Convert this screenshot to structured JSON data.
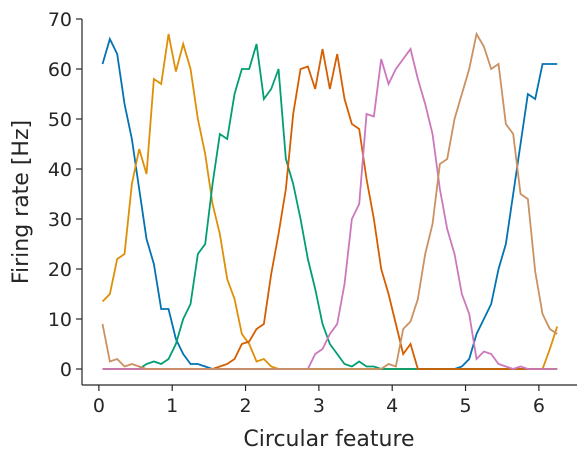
{
  "chart_data": {
    "type": "line",
    "xlabel": "Circular feature",
    "ylabel": "Firing rate [Hz]",
    "x": [
      0.05,
      0.15,
      0.25,
      0.35,
      0.45,
      0.55,
      0.65,
      0.75,
      0.85,
      0.95,
      1.05,
      1.15,
      1.25,
      1.35,
      1.45,
      1.55,
      1.65,
      1.75,
      1.85,
      1.95,
      2.05,
      2.15,
      2.25,
      2.35,
      2.45,
      2.55,
      2.65,
      2.75,
      2.85,
      2.95,
      3.05,
      3.15,
      3.25,
      3.35,
      3.45,
      3.55,
      3.65,
      3.75,
      3.85,
      3.95,
      4.05,
      4.15,
      4.25,
      4.35,
      4.45,
      4.55,
      4.65,
      4.75,
      4.85,
      4.95,
      5.05,
      5.15,
      5.25,
      5.35,
      5.45,
      5.55,
      5.65,
      5.75,
      5.85,
      5.95,
      6.05,
      6.15,
      6.25
    ],
    "series": [
      {
        "color": "#0173b2",
        "values": [
          61,
          66,
          63,
          53,
          46,
          36,
          26,
          21,
          12,
          12,
          6,
          3,
          1,
          1,
          0.5,
          0,
          0,
          0,
          0,
          0,
          0,
          0,
          0,
          0,
          0,
          0,
          0,
          0,
          0,
          0,
          0,
          0,
          0,
          0,
          0,
          0,
          0,
          0,
          0,
          0,
          0,
          0,
          0,
          0,
          0,
          0,
          0,
          0,
          0,
          0.5,
          2,
          7,
          10,
          13,
          20,
          25,
          35,
          45,
          55,
          54,
          61,
          61,
          61
        ]
      },
      {
        "color": "#de8f05",
        "values": [
          13.5,
          15,
          22,
          23,
          37,
          44,
          39,
          58,
          57,
          67,
          59.5,
          65,
          60,
          50,
          43,
          33,
          27,
          18,
          14,
          7,
          5,
          1.5,
          2,
          0.5,
          0,
          0,
          0,
          0,
          0,
          0,
          0,
          0,
          0,
          0,
          0,
          0,
          0,
          0,
          0,
          0,
          0,
          0,
          0,
          0,
          0,
          0,
          0,
          0,
          0,
          0,
          0,
          0,
          0,
          0,
          0,
          0,
          0,
          0,
          0,
          0,
          0,
          4,
          8.5
        ]
      },
      {
        "color": "#029e73",
        "values": [
          0,
          0,
          0,
          0,
          0,
          0,
          1,
          1.5,
          1,
          2,
          5,
          10,
          13,
          23,
          25,
          37,
          47,
          46,
          55,
          60,
          60,
          65,
          54,
          56,
          60,
          42,
          37,
          30,
          22,
          16,
          9,
          5,
          3,
          1,
          0.5,
          1.5,
          0.5,
          0.5,
          0,
          0,
          0,
          0,
          0,
          0,
          0,
          0,
          0,
          0,
          0,
          0,
          0,
          0,
          0,
          0,
          0,
          0,
          0,
          0,
          0,
          0,
          0,
          0,
          0
        ]
      },
      {
        "color": "#d55e00",
        "values": [
          0,
          0,
          0,
          0,
          0,
          0,
          0,
          0,
          0,
          0,
          0,
          0,
          0,
          0,
          0,
          0,
          0.5,
          1,
          2,
          5,
          5.5,
          8,
          9,
          19,
          27,
          36,
          51,
          60,
          60.5,
          56,
          64,
          56,
          63,
          54,
          49,
          48,
          38,
          30,
          20,
          15,
          9,
          3,
          5,
          0,
          0,
          0,
          0,
          0,
          0,
          0,
          0,
          0,
          0,
          0,
          0,
          0,
          0,
          0,
          0,
          0,
          0,
          0,
          0
        ]
      },
      {
        "color": "#cc78bc",
        "values": [
          0,
          0,
          0,
          0,
          0,
          0,
          0,
          0,
          0,
          0,
          0,
          0,
          0,
          0,
          0,
          0,
          0,
          0,
          0,
          0,
          0,
          0,
          0,
          0,
          0,
          0,
          0,
          0,
          0,
          3,
          4,
          7,
          9,
          17,
          30,
          33,
          51,
          50.5,
          62,
          57,
          60,
          62,
          64,
          58,
          53,
          47,
          36,
          28,
          23,
          15,
          11,
          2,
          3.5,
          3,
          1,
          0.5,
          0,
          0.5,
          0,
          0,
          0,
          0,
          0
        ]
      },
      {
        "color": "#ca9161",
        "values": [
          9,
          1.5,
          2,
          0.5,
          1,
          0.5,
          0,
          0,
          0,
          0,
          0,
          0,
          0,
          0,
          0,
          0,
          0,
          0,
          0,
          0,
          0,
          0,
          0,
          0,
          0,
          0,
          0,
          0,
          0,
          0,
          0,
          0,
          0,
          0,
          0,
          0,
          0,
          0,
          0,
          1,
          0.5,
          8,
          9.5,
          14,
          23,
          29,
          41,
          42,
          50,
          55,
          60,
          67,
          64.5,
          60,
          61,
          49,
          47,
          35,
          34,
          19.5,
          11,
          8,
          7
        ]
      }
    ],
    "xlim": [
      -0.23,
      6.52
    ],
    "ylim": [
      -3.2,
      70
    ],
    "xticks": [
      0,
      1,
      2,
      3,
      4,
      5,
      6
    ],
    "yticks": [
      0,
      10,
      20,
      30,
      40,
      50,
      60,
      70
    ]
  }
}
